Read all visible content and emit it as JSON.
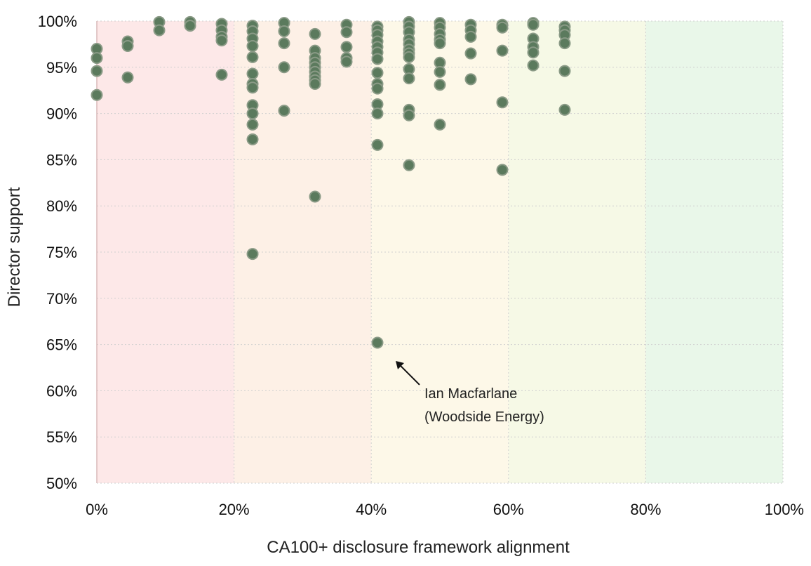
{
  "chart_data": {
    "type": "scatter",
    "title": "",
    "xlabel": "CA100+ disclosure framework alignment",
    "ylabel": "Director support",
    "xlim": [
      0,
      100
    ],
    "ylim": [
      50,
      100
    ],
    "x_ticks": [
      "0%",
      "20%",
      "40%",
      "60%",
      "80%",
      "100%"
    ],
    "y_ticks": [
      "50%",
      "55%",
      "60%",
      "65%",
      "70%",
      "75%",
      "80%",
      "85%",
      "90%",
      "95%",
      "100%"
    ],
    "grid": true,
    "bands": [
      {
        "from": 0,
        "to": 20,
        "color": "#fde8e8"
      },
      {
        "from": 20,
        "to": 40,
        "color": "#fdf0e6"
      },
      {
        "from": 40,
        "to": 60,
        "color": "#fdf8e8"
      },
      {
        "from": 60,
        "to": 80,
        "color": "#f6f9e6"
      },
      {
        "from": 80,
        "to": 100,
        "color": "#e9f7e9"
      }
    ],
    "marker_color": "#5b7a5d",
    "points": [
      {
        "x": 0,
        "y": 97.0
      },
      {
        "x": 0,
        "y": 96.0
      },
      {
        "x": 0,
        "y": 94.6
      },
      {
        "x": 0,
        "y": 92.0
      },
      {
        "x": 4.5,
        "y": 97.8
      },
      {
        "x": 4.5,
        "y": 97.3
      },
      {
        "x": 4.5,
        "y": 93.9
      },
      {
        "x": 9.1,
        "y": 99.9
      },
      {
        "x": 9.1,
        "y": 99.0
      },
      {
        "x": 13.6,
        "y": 99.9
      },
      {
        "x": 13.6,
        "y": 99.5
      },
      {
        "x": 18.2,
        "y": 99.7
      },
      {
        "x": 18.2,
        "y": 99.0
      },
      {
        "x": 18.2,
        "y": 98.3
      },
      {
        "x": 18.2,
        "y": 97.9
      },
      {
        "x": 18.2,
        "y": 94.2
      },
      {
        "x": 22.7,
        "y": 99.5
      },
      {
        "x": 22.7,
        "y": 98.9
      },
      {
        "x": 22.7,
        "y": 98.1
      },
      {
        "x": 22.7,
        "y": 97.3
      },
      {
        "x": 22.7,
        "y": 96.1
      },
      {
        "x": 22.7,
        "y": 94.3
      },
      {
        "x": 22.7,
        "y": 93.2
      },
      {
        "x": 22.7,
        "y": 92.8
      },
      {
        "x": 22.7,
        "y": 90.9
      },
      {
        "x": 22.7,
        "y": 90.0
      },
      {
        "x": 22.7,
        "y": 88.8
      },
      {
        "x": 22.7,
        "y": 87.2
      },
      {
        "x": 22.7,
        "y": 74.8
      },
      {
        "x": 27.3,
        "y": 99.8
      },
      {
        "x": 27.3,
        "y": 98.9
      },
      {
        "x": 27.3,
        "y": 97.6
      },
      {
        "x": 27.3,
        "y": 95.0
      },
      {
        "x": 27.3,
        "y": 90.3
      },
      {
        "x": 31.8,
        "y": 98.6
      },
      {
        "x": 31.8,
        "y": 96.8
      },
      {
        "x": 31.8,
        "y": 96.0
      },
      {
        "x": 31.8,
        "y": 95.5
      },
      {
        "x": 31.8,
        "y": 95.0
      },
      {
        "x": 31.8,
        "y": 94.5
      },
      {
        "x": 31.8,
        "y": 94.0
      },
      {
        "x": 31.8,
        "y": 93.6
      },
      {
        "x": 31.8,
        "y": 93.2
      },
      {
        "x": 31.8,
        "y": 81.0
      },
      {
        "x": 36.4,
        "y": 99.6
      },
      {
        "x": 36.4,
        "y": 98.8
      },
      {
        "x": 36.4,
        "y": 97.2
      },
      {
        "x": 36.4,
        "y": 96.0
      },
      {
        "x": 36.4,
        "y": 95.6
      },
      {
        "x": 40.9,
        "y": 99.4
      },
      {
        "x": 40.9,
        "y": 99.0
      },
      {
        "x": 40.9,
        "y": 98.5
      },
      {
        "x": 40.9,
        "y": 97.8
      },
      {
        "x": 40.9,
        "y": 97.2
      },
      {
        "x": 40.9,
        "y": 96.6
      },
      {
        "x": 40.9,
        "y": 95.9
      },
      {
        "x": 40.9,
        "y": 94.4
      },
      {
        "x": 40.9,
        "y": 93.2
      },
      {
        "x": 40.9,
        "y": 92.7
      },
      {
        "x": 40.9,
        "y": 91.0
      },
      {
        "x": 40.9,
        "y": 90.0
      },
      {
        "x": 40.9,
        "y": 86.6
      },
      {
        "x": 40.9,
        "y": 65.2
      },
      {
        "x": 45.5,
        "y": 99.9
      },
      {
        "x": 45.5,
        "y": 99.4
      },
      {
        "x": 45.5,
        "y": 98.8
      },
      {
        "x": 45.5,
        "y": 98.0
      },
      {
        "x": 45.5,
        "y": 97.5
      },
      {
        "x": 45.5,
        "y": 96.9
      },
      {
        "x": 45.5,
        "y": 96.5
      },
      {
        "x": 45.5,
        "y": 96.1
      },
      {
        "x": 45.5,
        "y": 94.8
      },
      {
        "x": 45.5,
        "y": 93.8
      },
      {
        "x": 45.5,
        "y": 90.4
      },
      {
        "x": 45.5,
        "y": 89.8
      },
      {
        "x": 45.5,
        "y": 84.4
      },
      {
        "x": 50.0,
        "y": 99.8
      },
      {
        "x": 50.0,
        "y": 99.3
      },
      {
        "x": 50.0,
        "y": 98.6
      },
      {
        "x": 50.0,
        "y": 98.0
      },
      {
        "x": 50.0,
        "y": 97.6
      },
      {
        "x": 50.0,
        "y": 95.5
      },
      {
        "x": 50.0,
        "y": 94.5
      },
      {
        "x": 50.0,
        "y": 93.1
      },
      {
        "x": 50.0,
        "y": 88.8
      },
      {
        "x": 54.5,
        "y": 99.6
      },
      {
        "x": 54.5,
        "y": 99.0
      },
      {
        "x": 54.5,
        "y": 98.3
      },
      {
        "x": 54.5,
        "y": 96.5
      },
      {
        "x": 54.5,
        "y": 93.7
      },
      {
        "x": 59.1,
        "y": 99.6
      },
      {
        "x": 59.1,
        "y": 99.3
      },
      {
        "x": 59.1,
        "y": 96.8
      },
      {
        "x": 59.1,
        "y": 91.2
      },
      {
        "x": 59.1,
        "y": 83.9
      },
      {
        "x": 63.6,
        "y": 99.8
      },
      {
        "x": 63.6,
        "y": 99.6
      },
      {
        "x": 63.6,
        "y": 98.1
      },
      {
        "x": 63.6,
        "y": 97.2
      },
      {
        "x": 63.6,
        "y": 96.6
      },
      {
        "x": 63.6,
        "y": 95.2
      },
      {
        "x": 68.2,
        "y": 99.4
      },
      {
        "x": 68.2,
        "y": 99.0
      },
      {
        "x": 68.2,
        "y": 98.5
      },
      {
        "x": 68.2,
        "y": 97.6
      },
      {
        "x": 68.2,
        "y": 94.6
      },
      {
        "x": 68.2,
        "y": 90.4
      }
    ],
    "annotations": [
      {
        "lines": [
          "Ian Macfarlane",
          "(Woodside Energy)"
        ],
        "target": {
          "x": 40.9,
          "y": 65.2
        }
      }
    ]
  }
}
